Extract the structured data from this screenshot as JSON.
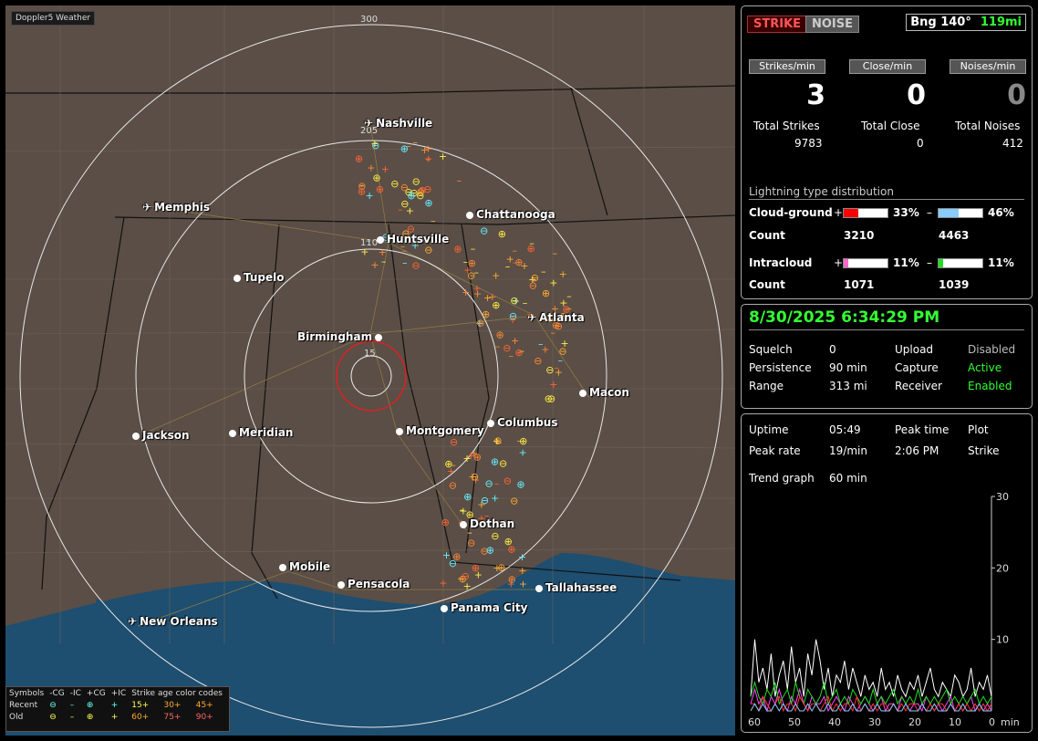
{
  "app_title": "Doppler5 Weather",
  "map": {
    "ring_labels": [
      "300",
      "205",
      "110",
      "15"
    ],
    "cities": [
      {
        "name": "Nashville",
        "icon": "airplane-icon"
      },
      {
        "name": "Memphis",
        "icon": "airplane-icon"
      },
      {
        "name": "Chattanooga",
        "icon": "dot-icon"
      },
      {
        "name": "Huntsville",
        "icon": "dot-icon"
      },
      {
        "name": "Tupelo",
        "icon": "dot-icon"
      },
      {
        "name": "Atlanta",
        "icon": "airplane-icon"
      },
      {
        "name": "Birmingham",
        "icon": "dot-icon"
      },
      {
        "name": "Macon",
        "icon": "dot-icon"
      },
      {
        "name": "Jackson",
        "icon": "dot-icon"
      },
      {
        "name": "Meridian",
        "icon": "dot-icon"
      },
      {
        "name": "Montgomery",
        "icon": "dot-icon"
      },
      {
        "name": "Columbus",
        "icon": "dot-icon"
      },
      {
        "name": "Dothan",
        "icon": "dot-icon"
      },
      {
        "name": "Mobile",
        "icon": "dot-icon"
      },
      {
        "name": "Pensacola",
        "icon": "dot-icon"
      },
      {
        "name": "Tallahassee",
        "icon": "dot-icon"
      },
      {
        "name": "Panama City",
        "icon": "dot-icon"
      },
      {
        "name": "New Orleans",
        "icon": "airplane-icon"
      }
    ]
  },
  "legend": {
    "header": [
      "Symbols",
      "-CG",
      "-IC",
      "+CG",
      "+IC",
      "Strike age color codes"
    ],
    "recent_label": "Recent",
    "old_label": "Old",
    "recent_ages": [
      "15+",
      "30+",
      "45+"
    ],
    "old_ages": [
      "60+",
      "75+",
      "90+"
    ]
  },
  "top_buttons": {
    "strike": "STRIKE",
    "noise": "NOISE"
  },
  "bearing": {
    "label": "Bng 140°",
    "range": "119mi"
  },
  "rates": {
    "strikes_label": "Strikes/min",
    "strikes": "3",
    "close_label": "Close/min",
    "close": "0",
    "noises_label": "Noises/min",
    "noises": "0"
  },
  "totals": {
    "strikes_label": "Total Strikes",
    "strikes": "9783",
    "close_label": "Total Close",
    "close": "0",
    "noises_label": "Total Noises",
    "noises": "412"
  },
  "distribution": {
    "title": "Lightning type distribution",
    "cg_label": "Cloud-ground",
    "cg_pos_pct": "33%",
    "cg_neg_pct": "46%",
    "cg_pos_fill": 0.33,
    "cg_neg_fill": 0.46,
    "count_label": "Count",
    "cg_pos_count": "3210",
    "cg_neg_count": "4463",
    "ic_label": "Intracloud",
    "ic_pos_pct": "11%",
    "ic_neg_pct": "11%",
    "ic_pos_fill": 0.11,
    "ic_neg_fill": 0.11,
    "ic_pos_count": "1071",
    "ic_neg_count": "1039",
    "plus": "+",
    "minus": "–",
    "colors": {
      "cg_pos": "#ff0000",
      "cg_neg": "#88ccff",
      "ic_pos": "#ff66cc",
      "ic_neg": "#22dd22"
    }
  },
  "status": {
    "datetime": "8/30/2025 6:34:29 PM",
    "squelch_label": "Squelch",
    "squelch": "0",
    "persistence_label": "Persistence",
    "persistence": "90 min",
    "range_label": "Range",
    "range": "313 mi",
    "upload_label": "Upload",
    "upload": "Disabled",
    "capture_label": "Capture",
    "capture": "Active",
    "receiver_label": "Receiver",
    "receiver": "Enabled"
  },
  "stats": {
    "uptime_label": "Uptime",
    "uptime": "05:49",
    "peak_time_label": "Peak time",
    "peak_time": "2:06 PM",
    "plot_label": "Plot",
    "plot": "Strike",
    "peak_rate_label": "Peak rate",
    "peak_rate": "19/min",
    "trend_label": "Trend graph",
    "trend": "60 min"
  },
  "chart_data": {
    "type": "line",
    "xlabel": "min",
    "x_ticks": [
      "60",
      "50",
      "40",
      "30",
      "20",
      "10",
      "0"
    ],
    "y_ticks": [
      "30",
      "20",
      "10"
    ],
    "xlim": [
      60,
      0
    ],
    "ylim": [
      0,
      30
    ],
    "series": [
      {
        "color": "#ffffff",
        "values": [
          2,
          10,
          4,
          6,
          3,
          8,
          2,
          5,
          7,
          3,
          9,
          4,
          6,
          2,
          8,
          5,
          10,
          7,
          3,
          6,
          2,
          5,
          4,
          7,
          3,
          6,
          4,
          2,
          5,
          3,
          4,
          2,
          6,
          3,
          4,
          2,
          5,
          3,
          2,
          4,
          3,
          5,
          2,
          4,
          6,
          3,
          2,
          4,
          3,
          2,
          5,
          4,
          2,
          3,
          6,
          2,
          4,
          3,
          5,
          2
        ]
      },
      {
        "color": "#ff44ff",
        "values": [
          1,
          3,
          1,
          2,
          0,
          2,
          1,
          3,
          1,
          0,
          2,
          1,
          3,
          1,
          0,
          2,
          1,
          1,
          2,
          0,
          1,
          2,
          1,
          0,
          2,
          1,
          0,
          1,
          2,
          1,
          0,
          1,
          2,
          0,
          1,
          1,
          0,
          2,
          1,
          0,
          1,
          1,
          0,
          2,
          1,
          0,
          1,
          0,
          1,
          2,
          0,
          1,
          0,
          1,
          2,
          0,
          1,
          0,
          1,
          0
        ]
      },
      {
        "color": "#22dd22",
        "values": [
          2,
          4,
          2,
          1,
          3,
          2,
          4,
          1,
          2,
          3,
          1,
          4,
          2,
          1,
          3,
          2,
          1,
          2,
          4,
          1,
          2,
          3,
          1,
          2,
          1,
          3,
          2,
          1,
          2,
          1,
          3,
          1,
          2,
          1,
          2,
          3,
          1,
          2,
          1,
          2,
          1,
          3,
          1,
          2,
          1,
          2,
          1,
          2,
          3,
          1,
          2,
          1,
          2,
          1,
          2,
          3,
          1,
          2,
          1,
          2
        ]
      },
      {
        "color": "#ff3333",
        "values": [
          1,
          1,
          0,
          2,
          1,
          0,
          1,
          2,
          0,
          1,
          1,
          0,
          2,
          1,
          0,
          1,
          1,
          0,
          1,
          2,
          0,
          1,
          0,
          1,
          1,
          0,
          2,
          0,
          1,
          0,
          1,
          0,
          1,
          1,
          0,
          1,
          0,
          1,
          0,
          1,
          1,
          0,
          1,
          0,
          1,
          0,
          1,
          1,
          0,
          1,
          0,
          1,
          0,
          1,
          0,
          1,
          0,
          1,
          0,
          1
        ]
      },
      {
        "color": "#88ccff",
        "values": [
          0,
          1,
          0,
          1,
          0,
          0,
          1,
          0,
          1,
          0,
          0,
          1,
          0,
          0,
          1,
          0,
          1,
          0,
          0,
          1,
          0,
          0,
          1,
          0,
          0,
          1,
          0,
          0,
          1,
          0,
          0,
          1,
          0,
          0,
          0,
          1,
          0,
          0,
          1,
          0,
          0,
          0,
          1,
          0,
          0,
          1,
          0,
          0,
          0,
          1,
          0,
          0,
          1,
          0,
          0,
          0,
          1,
          0,
          0,
          0
        ]
      }
    ]
  }
}
